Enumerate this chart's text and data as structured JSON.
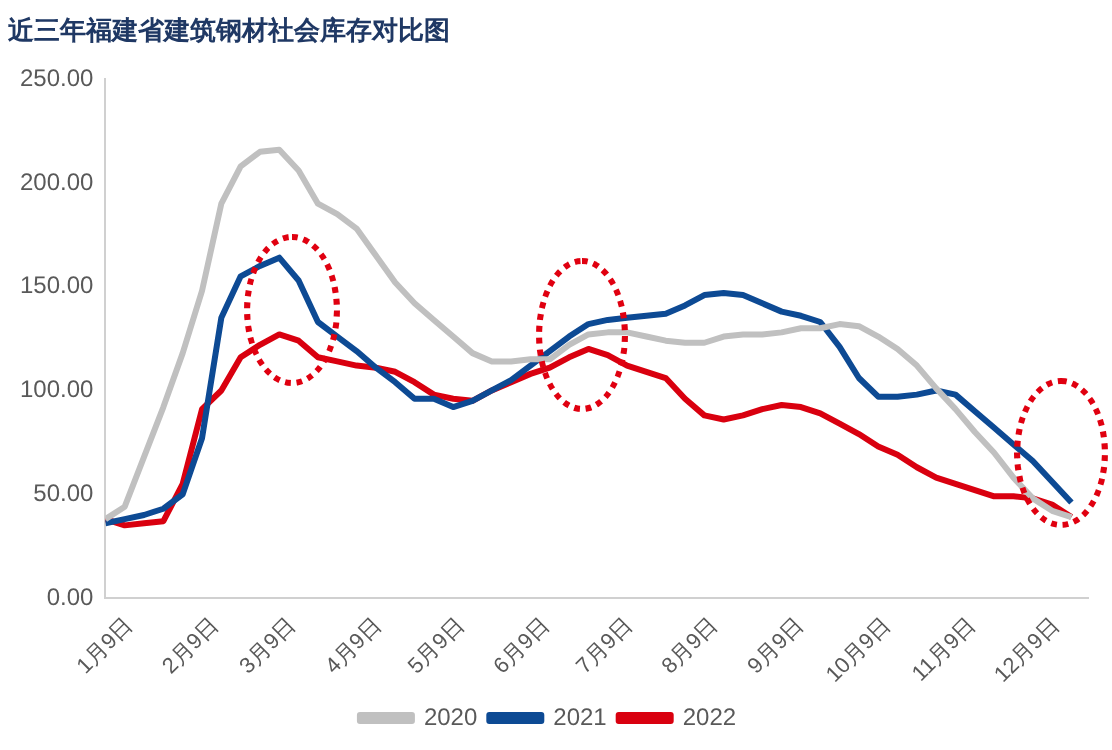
{
  "chart_data": {
    "type": "line",
    "title": "近三年福建省建筑钢材社会库存对比图",
    "x": [
      "--01-09",
      "--01-16",
      "--01-23",
      "--01-30",
      "--02-06",
      "--02-13",
      "--02-20",
      "--02-27",
      "--03-06",
      "--03-13",
      "--03-20",
      "--03-27",
      "--04-03",
      "--04-10",
      "--04-17",
      "--04-24",
      "--05-01",
      "--05-08",
      "--05-15",
      "--05-22",
      "--05-29",
      "--06-05",
      "--06-12",
      "--06-19",
      "--06-26",
      "--07-03",
      "--07-10",
      "--07-17",
      "--07-24",
      "--07-31",
      "--08-07",
      "--08-14",
      "--08-21",
      "--08-28",
      "--09-04",
      "--09-11",
      "--09-18",
      "--09-25",
      "--10-02",
      "--10-09",
      "--10-16",
      "--10-23",
      "--10-30",
      "--11-06",
      "--11-13",
      "--11-20",
      "--11-27",
      "--12-04",
      "--12-11",
      "--12-18",
      "--12-25"
    ],
    "series": [
      {
        "name": "2020",
        "color": "#c0c0c0",
        "values": [
          38,
          44,
          68,
          92,
          118,
          148,
          190,
          208,
          215,
          216,
          206,
          190,
          185,
          178,
          165,
          152,
          142,
          134,
          126,
          118,
          114,
          114,
          115,
          115,
          122,
          127,
          128,
          128,
          126,
          124,
          123,
          123,
          126,
          127,
          127,
          128,
          130,
          130,
          132,
          131,
          126,
          120,
          112,
          101,
          91,
          80,
          70,
          58,
          48,
          42,
          39
        ]
      },
      {
        "name": "2021",
        "color": "#0d4a94",
        "values": [
          36,
          38,
          40,
          43,
          50,
          77,
          135,
          155,
          160,
          164,
          153,
          133,
          126,
          119,
          111,
          104,
          96,
          96,
          92,
          95,
          100,
          105,
          112,
          119,
          126,
          132,
          134,
          135,
          136,
          137,
          141,
          146,
          147,
          146,
          142,
          138,
          136,
          133,
          121,
          106,
          97,
          97,
          98,
          100,
          98,
          90,
          82,
          74,
          66,
          56,
          46
        ]
      },
      {
        "name": "2022",
        "color": "#d9000f",
        "values": [
          38,
          35,
          36,
          37,
          55,
          91,
          100,
          116,
          122,
          127,
          124,
          116,
          114,
          112,
          111,
          109,
          104,
          98,
          96,
          95,
          100,
          104,
          108,
          111,
          116,
          120,
          117,
          112,
          109,
          106,
          96,
          88,
          86,
          88,
          91,
          93,
          92,
          89,
          84,
          79,
          73,
          69,
          63,
          58,
          55,
          52,
          49,
          49,
          48,
          45,
          39
        ]
      }
    ],
    "xlim": [
      "--01-09",
      "--12-31"
    ],
    "xticks": [
      {
        "value": "--01-09",
        "label": "1月9日"
      },
      {
        "value": "--02-09",
        "label": "2月9日"
      },
      {
        "value": "--03-09",
        "label": "3月9日"
      },
      {
        "value": "--04-09",
        "label": "4月9日"
      },
      {
        "value": "--05-09",
        "label": "5月9日"
      },
      {
        "value": "--06-09",
        "label": "6月9日"
      },
      {
        "value": "--07-09",
        "label": "7月9日"
      },
      {
        "value": "--08-09",
        "label": "8月9日"
      },
      {
        "value": "--09-09",
        "label": "9月9日"
      },
      {
        "value": "--10-09",
        "label": "10月9日"
      },
      {
        "value": "--11-09",
        "label": "11月9日"
      },
      {
        "value": "--12-09",
        "label": "12月9日"
      }
    ],
    "ylim": [
      0,
      250
    ],
    "yticks": [
      {
        "value": 0,
        "label": "0.00"
      },
      {
        "value": 50,
        "label": "50.00"
      },
      {
        "value": 100,
        "label": "100.00"
      },
      {
        "value": 150,
        "label": "150.00"
      },
      {
        "value": 200,
        "label": "200.00"
      },
      {
        "value": 250,
        "label": "250.00"
      }
    ],
    "legend": "bottom"
  }
}
